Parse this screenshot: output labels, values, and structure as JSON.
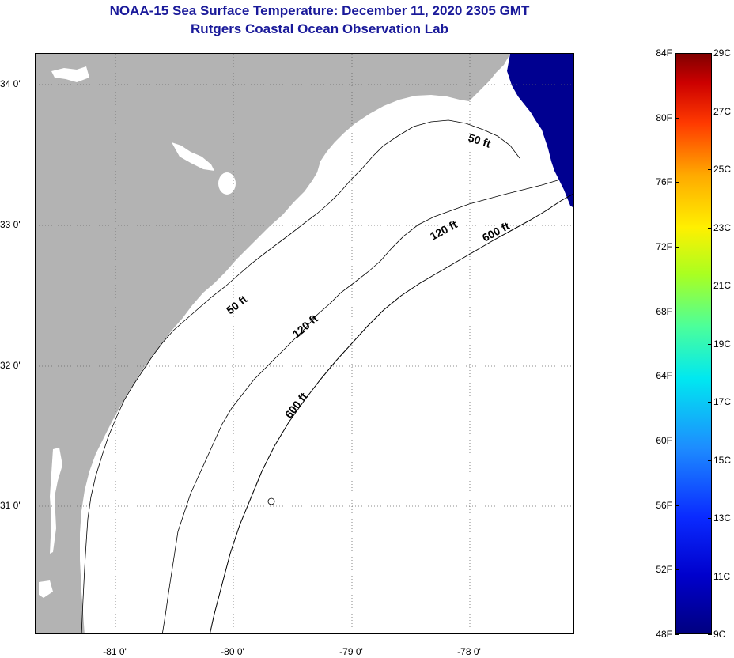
{
  "header": {
    "title_line1": "NOAA-15 Sea Surface Temperature:  December 11, 2020 2305 GMT",
    "title_line2": "Rutgers Coastal Ocean Observation Lab"
  },
  "map": {
    "lat_labels": [
      "34 0'",
      "33 0'",
      "32 0'",
      "31 0'"
    ],
    "lon_labels": [
      "-81 0'",
      "-80 0'",
      "-79 0'",
      "-78 0'"
    ],
    "contour_labels": [
      "50 ft",
      "50 ft",
      "120 ft",
      "120 ft",
      "600 ft",
      "600 ft"
    ],
    "colors": {
      "land": "#b3b3b3",
      "ocean_nodata": "#ffffff",
      "sst_cold": "#000090",
      "contour": "#000000"
    }
  },
  "colorbar": {
    "fahrenheit_labels": [
      "84F",
      "80F",
      "76F",
      "72F",
      "68F",
      "64F",
      "60F",
      "56F",
      "52F",
      "48F"
    ],
    "celsius_labels": [
      "29C",
      "27C",
      "25C",
      "23C",
      "21C",
      "19C",
      "17C",
      "15C",
      "13C",
      "11C",
      "9C"
    ],
    "range_f": [
      48,
      84
    ],
    "range_c": [
      9,
      29
    ]
  }
}
